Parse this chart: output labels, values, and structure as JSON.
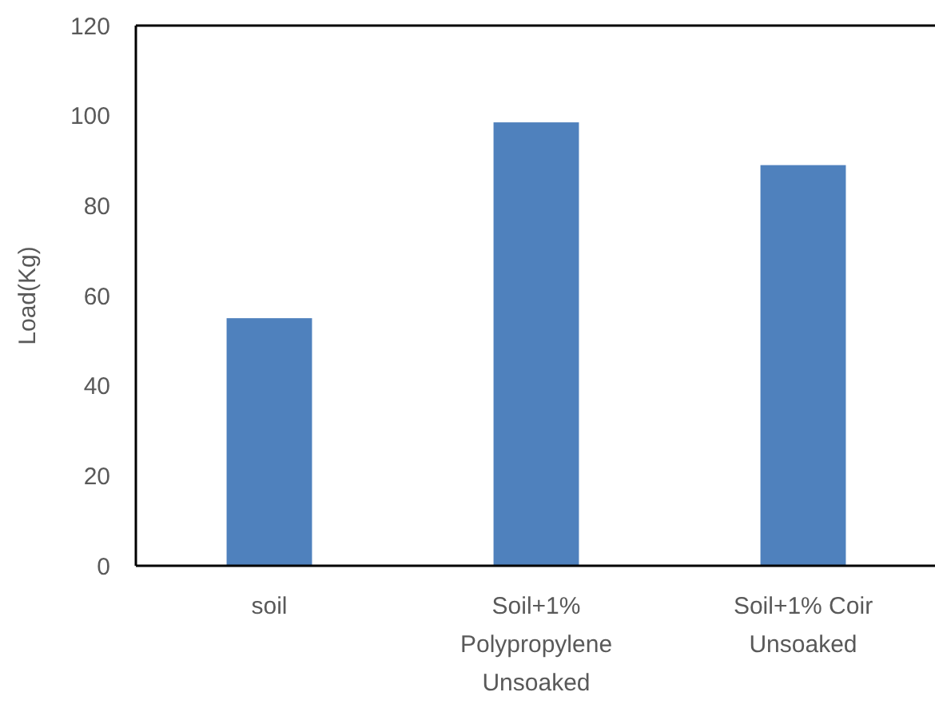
{
  "chart_data": {
    "type": "bar",
    "ylabel": "Load(Kg)",
    "categories": [
      "soil",
      "Soil+1% Polypropylene Unsoaked",
      "Soil+1% Coir Unsoaked"
    ],
    "values": [
      55,
      98.5,
      89
    ],
    "color": "#4f81bd",
    "ylim": [
      0,
      120
    ],
    "yticks": [
      0,
      20,
      40,
      60,
      80,
      100,
      120
    ],
    "grid": false
  }
}
